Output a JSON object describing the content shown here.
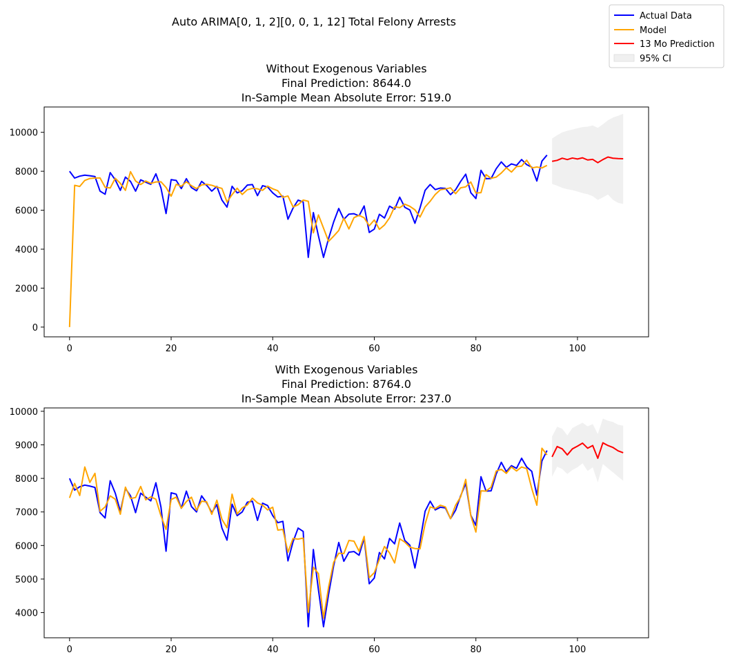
{
  "figure": {
    "suptitle": "Auto ARIMA[0, 1, 2][0, 0, 1, 12] Total Felony Arrests"
  },
  "legend": {
    "placement": "upper-right",
    "entries": [
      {
        "label": "Actual Data",
        "color": "#0000ff",
        "kind": "line"
      },
      {
        "label": "Model",
        "color": "#ffa500",
        "kind": "line"
      },
      {
        "label": "13 Mo Prediction",
        "color": "#ff0000",
        "kind": "line"
      },
      {
        "label": "95% CI",
        "color": "#f0f0f0",
        "kind": "patch"
      }
    ]
  },
  "colors": {
    "actual": "#0000ff",
    "model": "#ffa500",
    "prediction": "#ff0000",
    "ci": "#f0f0f0"
  },
  "chart_data": [
    {
      "type": "line",
      "title_lines": [
        "Without Exogenous Variables",
        "Final Prediction: 8644.0",
        "In-Sample Mean Absolute Error: 519.0"
      ],
      "xlim": [
        -5,
        114
      ],
      "ylim": [
        -500,
        11300
      ],
      "xticks": [
        0,
        20,
        40,
        60,
        80,
        100
      ],
      "yticks": [
        0,
        2000,
        4000,
        6000,
        8000,
        10000
      ],
      "grid": false,
      "actual": [
        8000,
        7650,
        7750,
        7800,
        7770,
        7730,
        6980,
        6820,
        7930,
        7560,
        7020,
        7700,
        7480,
        6980,
        7560,
        7440,
        7330,
        7870,
        7140,
        5830,
        7570,
        7530,
        7110,
        7620,
        7160,
        7000,
        7480,
        7270,
        6980,
        7220,
        6520,
        6160,
        7230,
        6890,
        7000,
        7290,
        7320,
        6750,
        7260,
        7190,
        6890,
        6680,
        6720,
        5540,
        6110,
        6520,
        6420,
        3580,
        5880,
        4680,
        3580,
        4550,
        5400,
        6090,
        5530,
        5800,
        5820,
        5710,
        6220,
        4860,
        5030,
        5790,
        5600,
        6210,
        6050,
        6670,
        6150,
        6010,
        5330,
        6120,
        7020,
        7320,
        7060,
        7140,
        7120,
        6800,
        7050,
        7480,
        7850,
        6900,
        6600,
        8050,
        7620,
        7630,
        8130,
        8480,
        8200,
        8380,
        8300,
        8600,
        8340,
        8210,
        7500,
        8520,
        8830
      ],
      "model": [
        0,
        7280,
        7220,
        7530,
        7630,
        7650,
        7660,
        7180,
        7140,
        7640,
        7380,
        7020,
        7980,
        7500,
        7320,
        7500,
        7380,
        7450,
        7460,
        7170,
        6720,
        7330,
        7230,
        7460,
        7260,
        7110,
        7300,
        7330,
        7280,
        7190,
        7120,
        6420,
        6800,
        7130,
        6810,
        7050,
        7120,
        7100,
        7020,
        7240,
        7100,
        7000,
        6660,
        6730,
        6170,
        6280,
        6520,
        6460,
        4840,
        5760,
        5080,
        4400,
        4670,
        4960,
        5590,
        5040,
        5620,
        5740,
        5610,
        5200,
        5500,
        5020,
        5240,
        5610,
        6180,
        6130,
        6310,
        6200,
        6020,
        5650,
        6170,
        6460,
        6810,
        7050,
        7090,
        7150,
        6850,
        7150,
        7200,
        7450,
        6880,
        6900,
        7830,
        7640,
        7700,
        7910,
        8180,
        7960,
        8240,
        8260,
        8570,
        8170,
        8220,
        8170,
        8300
      ],
      "prediction": [
        8510,
        8560,
        8670,
        8600,
        8680,
        8630,
        8690,
        8580,
        8610,
        8440,
        8600,
        8730,
        8670,
        8650,
        8644
      ],
      "ci_lower": [
        7350,
        7260,
        7150,
        7080,
        7030,
        6960,
        6880,
        6820,
        6720,
        6530,
        6660,
        6810,
        6530,
        6380,
        6320
      ],
      "ci_upper": [
        9680,
        9850,
        10000,
        10080,
        10140,
        10210,
        10270,
        10290,
        10350,
        10230,
        10410,
        10620,
        10760,
        10850,
        10950
      ]
    },
    {
      "type": "line",
      "title_lines": [
        "With Exogenous Variables",
        "Final Prediction: 8764.0",
        "In-Sample Mean Absolute Error: 237.0"
      ],
      "xlim": [
        -5,
        114
      ],
      "ylim": [
        3250,
        10100
      ],
      "xticks": [
        0,
        20,
        40,
        60,
        80,
        100
      ],
      "yticks": [
        4000,
        5000,
        6000,
        7000,
        8000,
        9000,
        10000
      ],
      "grid": false,
      "actual": [
        8000,
        7650,
        7750,
        7800,
        7770,
        7730,
        6980,
        6820,
        7930,
        7560,
        7020,
        7700,
        7480,
        6980,
        7560,
        7440,
        7330,
        7870,
        7140,
        5830,
        7570,
        7530,
        7110,
        7620,
        7160,
        7000,
        7480,
        7270,
        6980,
        7220,
        6520,
        6160,
        7230,
        6890,
        7000,
        7290,
        7320,
        6750,
        7260,
        7190,
        6890,
        6680,
        6720,
        5540,
        6110,
        6520,
        6420,
        3580,
        5880,
        4680,
        3580,
        4550,
        5400,
        6090,
        5530,
        5800,
        5820,
        5710,
        6220,
        4860,
        5030,
        5790,
        5600,
        6210,
        6050,
        6670,
        6150,
        6010,
        5330,
        6120,
        7020,
        7320,
        7060,
        7140,
        7120,
        6800,
        7050,
        7480,
        7850,
        6900,
        6600,
        8050,
        7620,
        7630,
        8130,
        8480,
        8200,
        8380,
        8300,
        8600,
        8340,
        8210,
        7500,
        8520,
        8830
      ],
      "model": [
        7420,
        7850,
        7490,
        8340,
        7880,
        8150,
        7020,
        7150,
        7480,
        7380,
        6930,
        7740,
        7400,
        7430,
        7760,
        7360,
        7450,
        7380,
        6880,
        6480,
        7370,
        7440,
        7110,
        7310,
        7440,
        7050,
        7320,
        7300,
        6930,
        7350,
        6780,
        6530,
        7530,
        6940,
        7120,
        7210,
        7410,
        7270,
        7200,
        7060,
        7140,
        6460,
        6480,
        5800,
        6210,
        6190,
        6220,
        4010,
        5350,
        5160,
        3830,
        4760,
        5500,
        5770,
        5760,
        6150,
        6130,
        5830,
        6270,
        5040,
        5190,
        5590,
        5970,
        5780,
        5480,
        6200,
        6100,
        5950,
        5910,
        5900,
        6640,
        7150,
        7100,
        7200,
        7150,
        6800,
        7200,
        7450,
        7970,
        6890,
        6400,
        7630,
        7620,
        7740,
        8220,
        8270,
        8150,
        8340,
        8220,
        8340,
        8290,
        7700,
        7200,
        8900,
        8700
      ],
      "prediction": [
        8640,
        8950,
        8880,
        8700,
        8880,
        8960,
        9050,
        8900,
        8980,
        8600,
        9060,
        8980,
        8920,
        8820,
        8764
      ],
      "ci_lower": [
        8050,
        8350,
        8280,
        8130,
        8250,
        8330,
        8450,
        8220,
        8330,
        7880,
        8430,
        8300,
        8180,
        8050,
        7930
      ],
      "ci_upper": [
        9250,
        9540,
        9480,
        9280,
        9500,
        9580,
        9660,
        9550,
        9620,
        9320,
        9780,
        9720,
        9680,
        9600,
        9570
      ]
    }
  ]
}
